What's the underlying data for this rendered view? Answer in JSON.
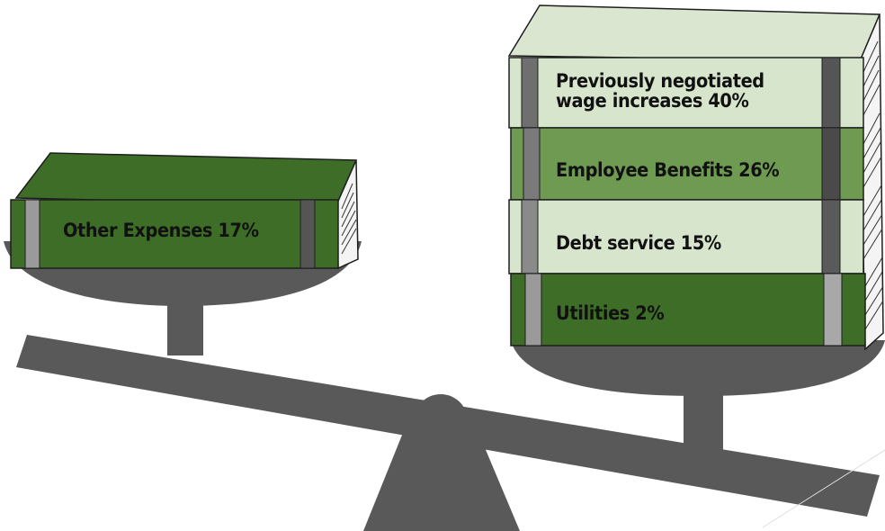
{
  "colors": {
    "dark_green": "#3d6d26",
    "mid_green": "#6e9a52",
    "light_green": "#d7e5cc",
    "scale_gray": "#595959",
    "spine_band": "#808080",
    "outline": "#1e1e1e"
  },
  "left_pan": {
    "books": [
      {
        "label": "Other Expenses 17%",
        "style": "dark"
      }
    ]
  },
  "right_pan": {
    "books": [
      {
        "label_line1": "Previously negotiated",
        "label_line2": "wage increases 40%",
        "style": "light"
      },
      {
        "label": "Employee Benefits 26%",
        "style": "mid"
      },
      {
        "label": "Debt service 15%",
        "style": "light"
      },
      {
        "label": "Utilities 2%",
        "style": "dark"
      }
    ]
  }
}
